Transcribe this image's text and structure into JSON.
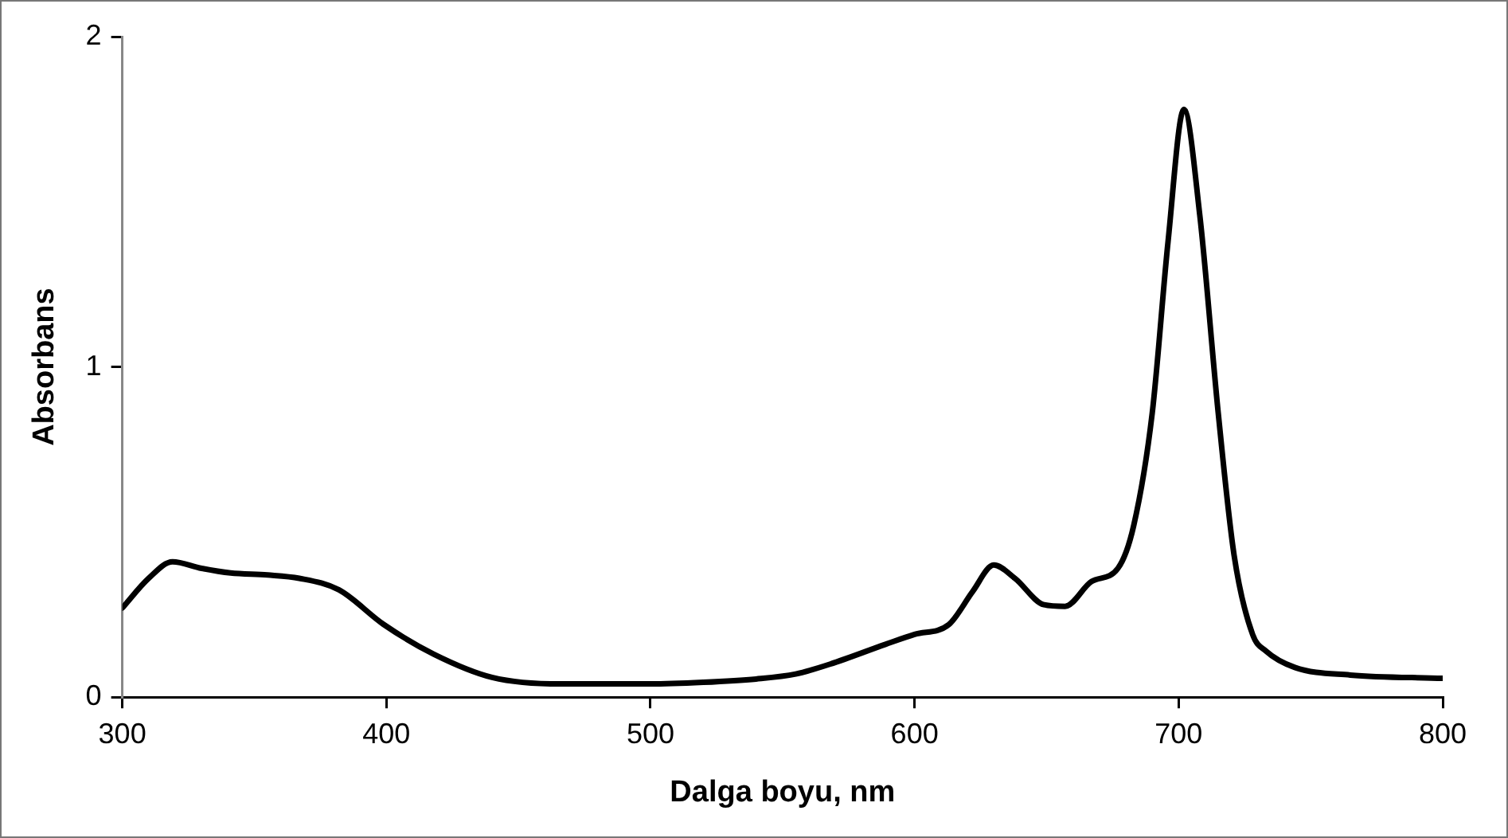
{
  "chart_data": {
    "type": "line",
    "xlabel": "Dalga boyu, nm",
    "ylabel": "Absorbans",
    "x": [
      300,
      310,
      319,
      330,
      341,
      355,
      367,
      382,
      399,
      418,
      440,
      466,
      500,
      520,
      540,
      555,
      568,
      589,
      600,
      613,
      622,
      630,
      638,
      649,
      657,
      667,
      677,
      683,
      690,
      696,
      702,
      708,
      715,
      721,
      728,
      733,
      744,
      765,
      800
    ],
    "series": [
      {
        "color": "#000000",
        "values": [
          0.27,
          0.36,
          0.41,
          0.39,
          0.376,
          0.37,
          0.36,
          0.325,
          0.22,
          0.13,
          0.06,
          0.04,
          0.04,
          0.045,
          0.055,
          0.07,
          0.1,
          0.16,
          0.19,
          0.22,
          0.32,
          0.4,
          0.36,
          0.28,
          0.275,
          0.35,
          0.39,
          0.52,
          0.86,
          1.38,
          1.78,
          1.46,
          0.86,
          0.43,
          0.19,
          0.14,
          0.09,
          0.067,
          0.057
        ]
      }
    ],
    "xlim": [
      300,
      800
    ],
    "xticks": [
      300,
      400,
      500,
      600,
      700,
      800
    ],
    "ylim": [
      0,
      2
    ],
    "yticks": [
      0,
      1,
      2
    ],
    "grid": false,
    "legend": false,
    "marker": "none",
    "line_style": "solid"
  }
}
